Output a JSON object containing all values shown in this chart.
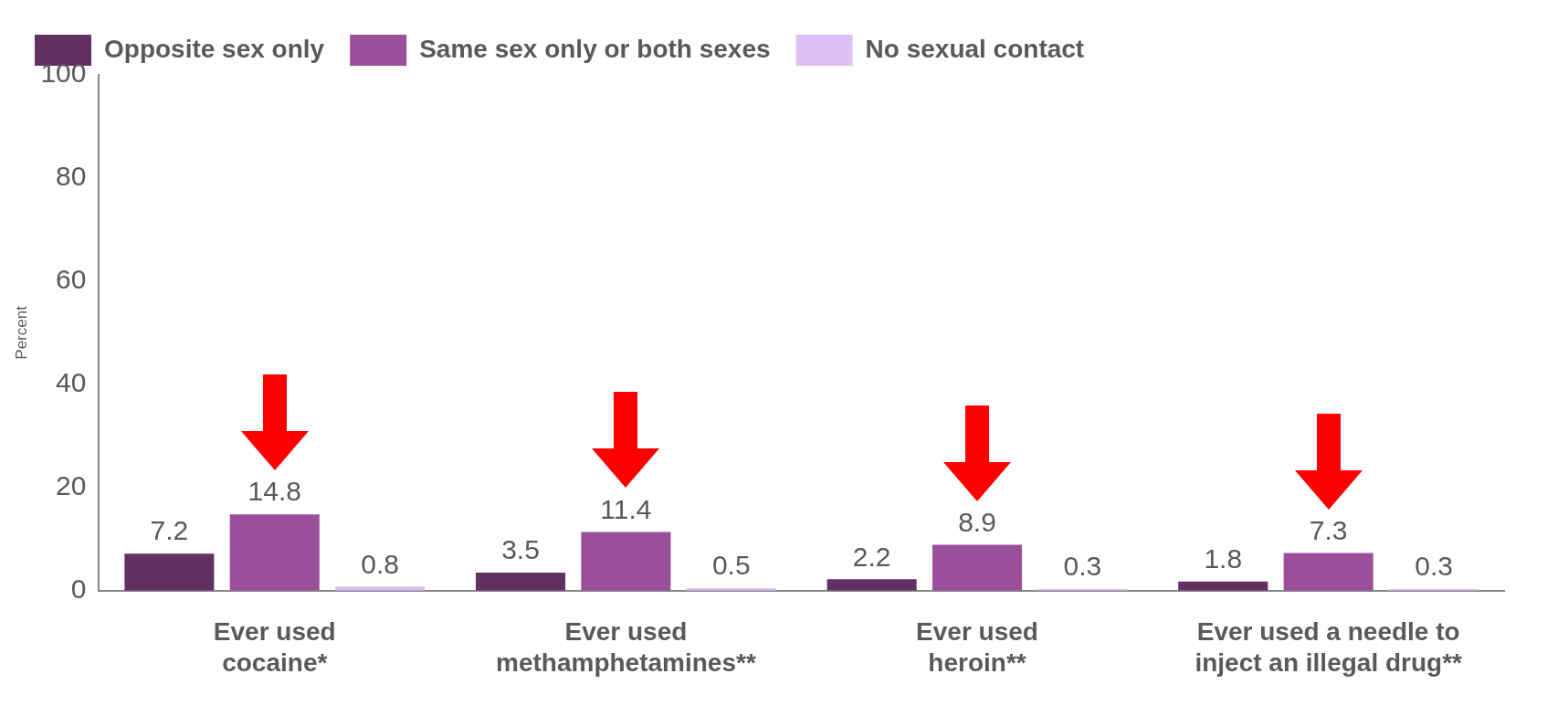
{
  "chart_data": {
    "type": "bar",
    "ylabel": "Percent",
    "categories": [
      "Ever used cocaine*",
      "Ever used methamphetamines**",
      "Ever used heroin**",
      "Ever used a needle to inject an illegal drug**"
    ],
    "series": [
      {
        "name": "Opposite sex only",
        "color": "#633063",
        "values": [
          7.2,
          3.5,
          2.2,
          1.8
        ]
      },
      {
        "name": "Same sex only or both sexes",
        "color": "#9b4f9b",
        "values": [
          14.8,
          11.4,
          8.9,
          7.3
        ]
      },
      {
        "name": "No sexual contact",
        "color": "#dcc0f5",
        "values": [
          0.8,
          0.5,
          0.3,
          0.3
        ]
      }
    ],
    "ylim": [
      0,
      100
    ],
    "yticks": [
      0,
      20,
      40,
      60,
      80,
      100
    ],
    "grid": false,
    "legend": "top left",
    "data_labels": true
  }
}
